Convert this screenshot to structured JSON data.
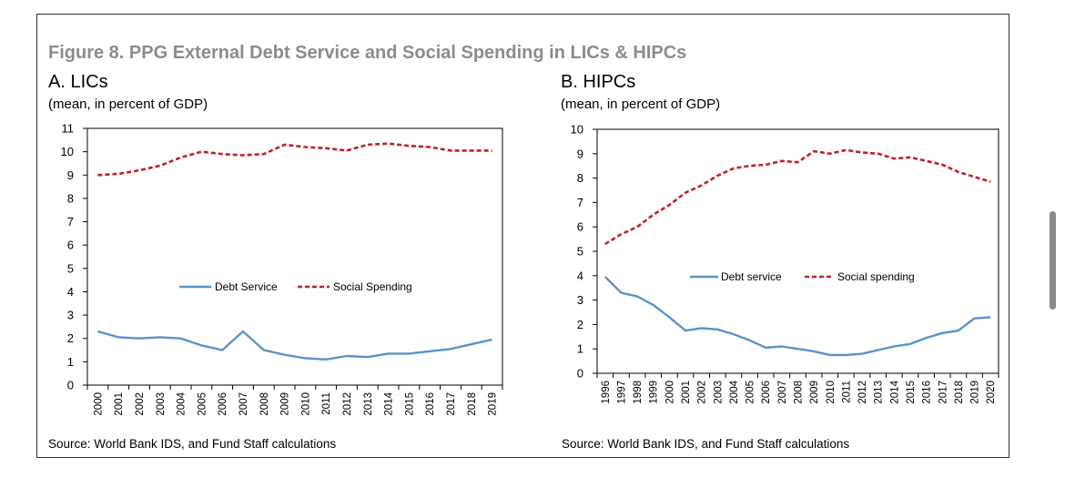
{
  "figure_title": "Figure 8. PPG External Debt Service and Social Spending in LICs & HIPCs",
  "colors": {
    "debt": "#5a93c9",
    "social": "#c0212b",
    "title": "#8c8c8c"
  },
  "chart_data": [
    {
      "type": "line",
      "title": "A. LICs",
      "subtitle": "(mean, in percent of GDP)",
      "source": "Source: World Bank IDS, and Fund Staff calculations",
      "x": [
        "2000",
        "2001",
        "2002",
        "2003",
        "2004",
        "2005",
        "2006",
        "2007",
        "2008",
        "2009",
        "2010",
        "2011",
        "2012",
        "2013",
        "2014",
        "2015",
        "2016",
        "2017",
        "2018",
        "2019"
      ],
      "ylim": [
        0,
        11
      ],
      "yticks": [
        0,
        1,
        2,
        3,
        4,
        5,
        6,
        7,
        8,
        9,
        10,
        11
      ],
      "legend_position": "center",
      "series": [
        {
          "name": "Debt Service",
          "style": "solid",
          "color": "#5a93c9",
          "values": [
            2.3,
            2.05,
            2.0,
            2.05,
            2.0,
            1.7,
            1.5,
            2.3,
            1.5,
            1.3,
            1.15,
            1.1,
            1.25,
            1.2,
            1.35,
            1.35,
            1.45,
            1.55,
            1.75,
            1.95
          ]
        },
        {
          "name": "Social Spending",
          "style": "dashed",
          "color": "#c0212b",
          "values": [
            9.0,
            9.05,
            9.2,
            9.4,
            9.75,
            10.0,
            9.9,
            9.85,
            9.9,
            10.3,
            10.2,
            10.15,
            10.05,
            10.3,
            10.35,
            10.25,
            10.2,
            10.05,
            10.05,
            10.05
          ]
        }
      ]
    },
    {
      "type": "line",
      "title": "B. HIPCs",
      "subtitle": "(mean, in percent of GDP)",
      "source": "Source: World Bank IDS, and Fund Staff calculations",
      "x": [
        "1996",
        "1997",
        "1998",
        "1999",
        "2000",
        "2001",
        "2002",
        "2003",
        "2004",
        "2005",
        "2006",
        "2007",
        "2008",
        "2009",
        "2010",
        "2011",
        "2012",
        "2013",
        "2014",
        "2015",
        "2016",
        "2017",
        "2018",
        "2019",
        "2020"
      ],
      "ylim": [
        0,
        10
      ],
      "yticks": [
        0,
        1,
        2,
        3,
        4,
        5,
        6,
        7,
        8,
        9,
        10
      ],
      "legend_position": "center",
      "series": [
        {
          "name": "Debt service",
          "style": "solid",
          "color": "#5a93c9",
          "values": [
            3.95,
            3.3,
            3.15,
            2.8,
            2.3,
            1.75,
            1.85,
            1.8,
            1.6,
            1.35,
            1.05,
            1.1,
            1.0,
            0.9,
            0.75,
            0.75,
            0.8,
            0.95,
            1.1,
            1.2,
            1.45,
            1.65,
            1.75,
            2.25,
            2.3
          ]
        },
        {
          "name": "Social spending",
          "style": "dashed",
          "color": "#c0212b",
          "values": [
            5.3,
            5.7,
            6.0,
            6.5,
            6.9,
            7.4,
            7.7,
            8.1,
            8.4,
            8.5,
            8.55,
            8.7,
            8.65,
            9.1,
            9.0,
            9.15,
            9.05,
            9.0,
            8.8,
            8.85,
            8.7,
            8.55,
            8.25,
            8.05,
            7.85
          ]
        }
      ]
    }
  ]
}
